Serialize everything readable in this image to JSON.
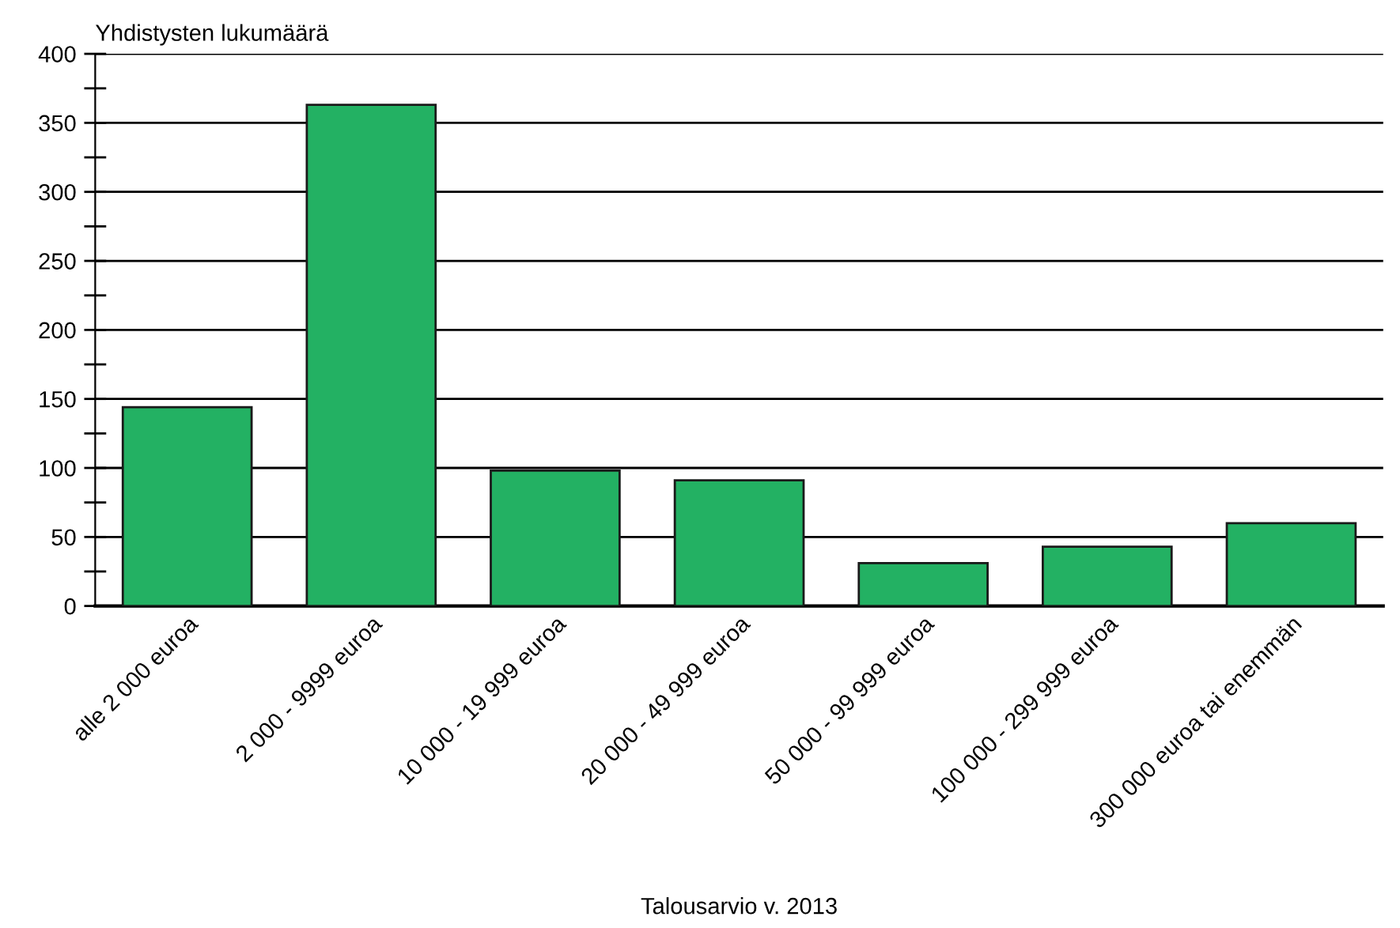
{
  "chart_data": {
    "type": "bar",
    "ylabel": "Yhdistysten lukumäärä",
    "xlabel": "Talousarvio v. 2013",
    "categories": [
      "alle 2 000 euroa",
      "2 000 - 9999 euroa",
      "10 000 - 19 999 euroa",
      "20 000 - 49 999 euroa",
      "50 000 - 99 999 euroa",
      "100 000 - 299 999 euroa",
      "300 000 euroa tai enemmän"
    ],
    "values": [
      144,
      363,
      98,
      91,
      31,
      43,
      60
    ],
    "color": "#23b163",
    "ylim": [
      0,
      400
    ],
    "yticks": [
      0,
      {
        "value": 25,
        "label": null
      },
      50,
      {
        "value": 75,
        "label": null
      },
      100,
      {
        "value": 125,
        "label": null
      },
      150,
      {
        "value": 175,
        "label": null
      },
      200,
      {
        "value": 225,
        "label": null
      },
      250,
      {
        "value": 275,
        "label": null
      },
      300,
      {
        "value": 325,
        "label": null
      },
      350,
      {
        "value": 375,
        "label": null
      },
      400
    ],
    "grid": "y"
  }
}
